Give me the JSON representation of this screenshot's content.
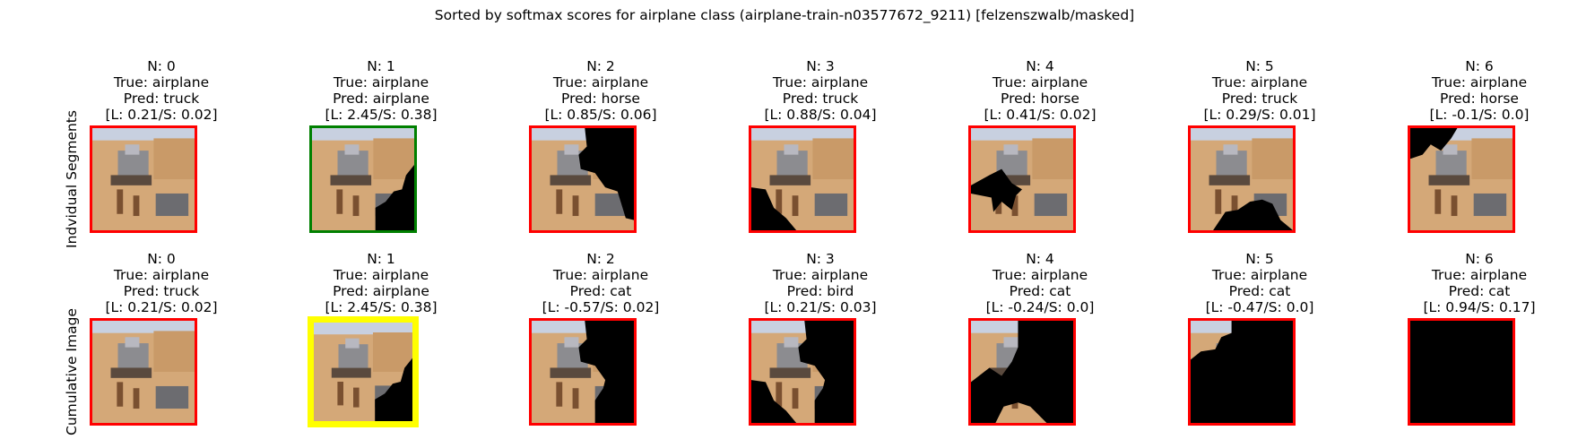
{
  "figure": {
    "title": "Sorted by softmax scores for airplane class (airplane-train-n03577672_9211) [felzenszwalb/masked]"
  },
  "chart_data": {
    "type": "image-grid",
    "title": "Sorted by softmax scores for airplane class (airplane-train-n03577672_9211) [felzenszwalb/masked]",
    "rows": [
      {
        "label": "Indvidual Segments",
        "panels": [
          {
            "n": "N: 0",
            "true": "True: airplane",
            "pred": "Pred: truck",
            "scores": "[L: 0.21/S: 0.02]",
            "border": "#ff0000",
            "mask": "none"
          },
          {
            "n": "N: 1",
            "true": "True: airplane",
            "pred": "Pred: airplane",
            "scores": "[L: 2.45/S: 0.38]",
            "border": "#008000",
            "mask": "bottom-right"
          },
          {
            "n": "N: 2",
            "true": "True: airplane",
            "pred": "Pred: horse",
            "scores": "[L: 0.85/S: 0.06]",
            "border": "#ff0000",
            "mask": "top-right"
          },
          {
            "n": "N: 3",
            "true": "True: airplane",
            "pred": "Pred: truck",
            "scores": "[L: 0.88/S: 0.04]",
            "border": "#ff0000",
            "mask": "bottom-left"
          },
          {
            "n": "N: 4",
            "true": "True: airplane",
            "pred": "Pred: horse",
            "scores": "[L: 0.41/S: 0.02]",
            "border": "#ff0000",
            "mask": "left-star"
          },
          {
            "n": "N: 5",
            "true": "True: airplane",
            "pred": "Pred: truck",
            "scores": "[L: 0.29/S: 0.01]",
            "border": "#ff0000",
            "mask": "bottom-middle"
          },
          {
            "n": "N: 6",
            "true": "True: airplane",
            "pred": "Pred: horse",
            "scores": "[L: -0.1/S: 0.0]",
            "border": "#ff0000",
            "mask": "top-left"
          }
        ]
      },
      {
        "label": "Cumulative Image",
        "panels": [
          {
            "n": "N: 0",
            "true": "True: airplane",
            "pred": "Pred: truck",
            "scores": "[L: 0.21/S: 0.02]",
            "border": "#ff0000",
            "mask": "none"
          },
          {
            "n": "N: 1",
            "true": "True: airplane",
            "pred": "Pred: airplane",
            "scores": "[L: 2.45/S: 0.38]",
            "border": "#ffff00",
            "mask": "bottom-right"
          },
          {
            "n": "N: 2",
            "true": "True: airplane",
            "pred": "Pred: cat",
            "scores": "[L: -0.57/S: 0.02]",
            "border": "#ff0000",
            "mask": "cum-2"
          },
          {
            "n": "N: 3",
            "true": "True: airplane",
            "pred": "Pred: bird",
            "scores": "[L: 0.21/S: 0.03]",
            "border": "#ff0000",
            "mask": "cum-3"
          },
          {
            "n": "N: 4",
            "true": "True: airplane",
            "pred": "Pred: cat",
            "scores": "[L: -0.24/S: 0.0]",
            "border": "#ff0000",
            "mask": "cum-4"
          },
          {
            "n": "N: 5",
            "true": "True: airplane",
            "pred": "Pred: cat",
            "scores": "[L: -0.47/S: 0.0]",
            "border": "#ff0000",
            "mask": "cum-5"
          },
          {
            "n": "N: 6",
            "true": "True: airplane",
            "pred": "Pred: cat",
            "scores": "[L: 0.94/S: 0.17]",
            "border": "#ff0000",
            "mask": "full"
          }
        ]
      }
    ]
  }
}
